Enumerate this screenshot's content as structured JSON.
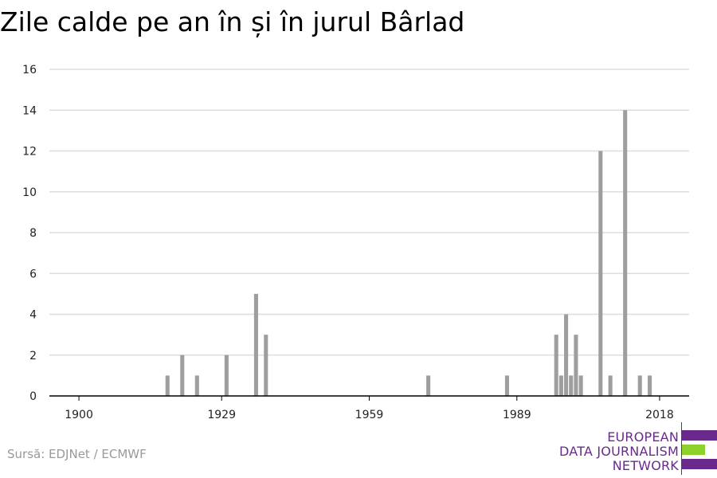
{
  "title": "Zile calde pe an în și în jurul Bârlad",
  "source": "Sursă: EDJNet / ECMWF",
  "logo": {
    "line1": "EUROPEAN",
    "line2": "DATA JOURNALISM",
    "line3": "NETWORK",
    "colors": {
      "primary": "#6a2a8c",
      "accent": "#8ed12b"
    }
  },
  "colors": {
    "bar": "#9e9e9e",
    "grid": "#dddddd",
    "axis": "#000000"
  },
  "chart_data": {
    "type": "bar",
    "title": "Zile calde pe an în și în jurul Bârlad",
    "xlabel": "",
    "ylabel": "",
    "xlim": [
      1894,
      2024
    ],
    "ylim": [
      0,
      16
    ],
    "x_ticks": [
      1900,
      1929,
      1959,
      1989,
      2018
    ],
    "y_ticks": [
      0,
      2,
      4,
      6,
      8,
      10,
      12,
      14,
      16
    ],
    "grid": "horizontal",
    "x": [
      1918,
      1921,
      1924,
      1930,
      1936,
      1938,
      1971,
      1987,
      1997,
      1998,
      1999,
      2000,
      2001,
      2002,
      2006,
      2008,
      2011,
      2014,
      2016
    ],
    "values": [
      1,
      2,
      1,
      2,
      5,
      3,
      1,
      1,
      3,
      1,
      4,
      1,
      3,
      1,
      12,
      1,
      14,
      1,
      1
    ]
  }
}
